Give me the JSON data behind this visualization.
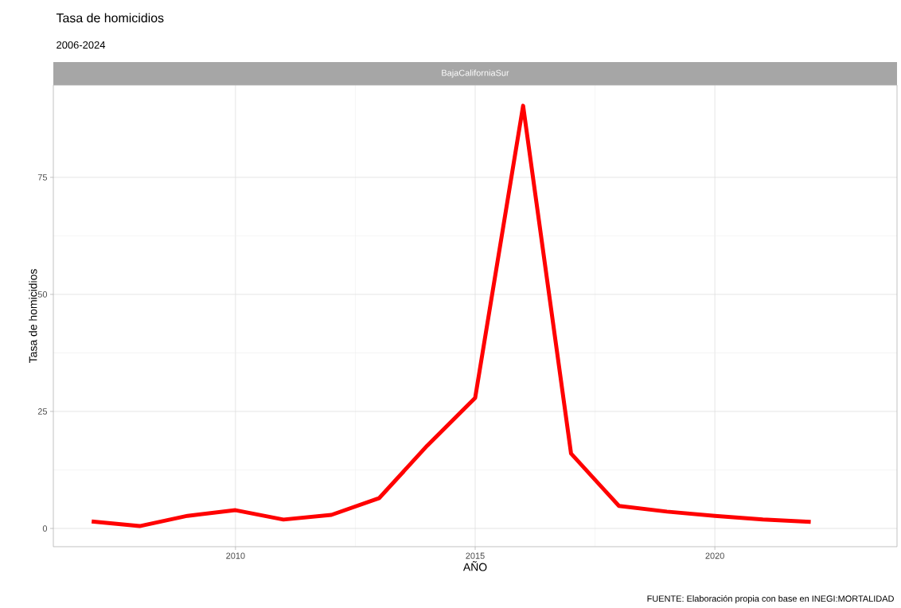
{
  "chart_data": {
    "type": "line",
    "title": "Tasa de homicidios",
    "subtitle": "2006-2024",
    "xlabel": "AÑO",
    "ylabel": "Tasa de homicidios",
    "annotations": [
      "BajaCaliforniaSur",
      "FUENTE: Elaboración propia con base en INEGI:MORTALIDAD"
    ],
    "x": [
      2007,
      2008,
      2009,
      2010,
      2011,
      2012,
      2013,
      2014,
      2015,
      2016,
      2017,
      2018,
      2019,
      2020,
      2021,
      2022
    ],
    "series": [
      {
        "color": "#ff0000",
        "values": [
          1.5,
          0.5,
          2.7,
          3.9,
          1.9,
          2.9,
          6.5,
          17.7,
          27.9,
          90.3,
          16,
          4.8,
          3.6,
          2.7,
          1.9,
          1.4
        ]
      }
    ],
    "xlim": [
      2006.2,
      2023.8
    ],
    "ylim": [
      -3.9,
      94.7
    ],
    "xticks": [
      2010,
      2015,
      2020
    ],
    "yticks": [
      0,
      25,
      50,
      75
    ],
    "grid": true
  }
}
